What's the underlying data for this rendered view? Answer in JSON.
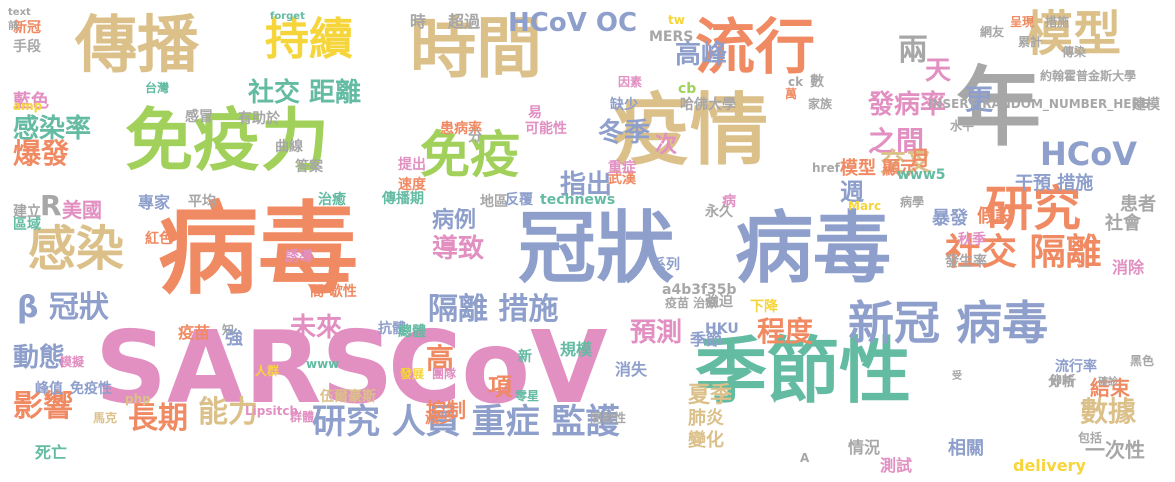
{
  "palette": {
    "orange": "#f08a63",
    "teal": "#63bba2",
    "blue": "#8e9fcc",
    "pink": "#e28fc2",
    "green": "#a1d15a",
    "yellow": "#f6d53a",
    "tan": "#dcc08a",
    "gray": "#a7a7a7"
  },
  "words": [
    {
      "text": "病毒"
    },
    {
      "text": "SARS"
    },
    {
      "text": "CoV"
    },
    {
      "text": "疫情"
    },
    {
      "text": "冠狀"
    },
    {
      "text": "病毒"
    },
    {
      "text": "季節性"
    },
    {
      "text": "免疫力"
    },
    {
      "text": "時間"
    },
    {
      "text": "傳播"
    },
    {
      "text": "年"
    },
    {
      "text": "流行"
    },
    {
      "text": "新冠 病毒"
    },
    {
      "text": "感染"
    },
    {
      "text": "模型"
    },
    {
      "text": "持續"
    },
    {
      "text": "免疫"
    },
    {
      "text": "研究"
    },
    {
      "text": "社交 隔離"
    },
    {
      "text": "HCoV OC"
    },
    {
      "text": "高峰"
    },
    {
      "text": "HCoV"
    },
    {
      "text": "爆發"
    },
    {
      "text": "感染率"
    },
    {
      "text": "社交 距離"
    },
    {
      "text": "隔離 措施"
    },
    {
      "text": "研究 人員 重症 監護"
    },
    {
      "text": "長期"
    },
    {
      "text": "能力"
    },
    {
      "text": "影響"
    },
    {
      "text": "動態"
    },
    {
      "text": "數據"
    },
    {
      "text": "β 冠狀"
    },
    {
      "text": "程度"
    },
    {
      "text": "預測"
    },
    {
      "text": "未來"
    },
    {
      "text": "發病率"
    },
    {
      "text": "之間"
    },
    {
      "text": "冬季"
    },
    {
      "text": "指出"
    },
    {
      "text": "導致"
    },
    {
      "text": "病例"
    },
    {
      "text": "交叉"
    },
    {
      "text": "更"
    },
    {
      "text": "兩"
    },
    {
      "text": "天"
    },
    {
      "text": "美國"
    },
    {
      "text": "R"
    },
    {
      "text": "結束"
    },
    {
      "text": "一次性"
    },
    {
      "text": "夏季"
    },
    {
      "text": "肺炎"
    },
    {
      "text": "變化"
    },
    {
      "text": "控制"
    },
    {
      "text": "項"
    },
    {
      "text": "高"
    },
    {
      "text": "時"
    },
    {
      "text": "超過"
    },
    {
      "text": "模型 顯示"
    },
    {
      "text": "干預 措施"
    },
    {
      "text": "月"
    },
    {
      "text": "週"
    },
    {
      "text": "次"
    },
    {
      "text": "暴發"
    },
    {
      "text": "假設"
    },
    {
      "text": "社會"
    },
    {
      "text": "患者"
    },
    {
      "text": "消除"
    },
    {
      "text": "相關"
    },
    {
      "text": "測試"
    },
    {
      "text": "delivery"
    },
    {
      "text": "藍色"
    },
    {
      "text": "amp"
    },
    {
      "text": "新冠"
    },
    {
      "text": "手段"
    },
    {
      "text": "台灣"
    },
    {
      "text": "患病率"
    },
    {
      "text": "可能性"
    },
    {
      "text": "哈佛大學"
    },
    {
      "text": "約翰霍普金斯大學"
    },
    {
      "text": "傳染"
    },
    {
      "text": "累計"
    },
    {
      "text": "呈現"
    },
    {
      "text": "措施"
    },
    {
      "text": "網友"
    },
    {
      "text": "建模"
    },
    {
      "text": "www5"
    },
    {
      "text": "家族"
    },
    {
      "text": "萬"
    },
    {
      "text": "ck"
    },
    {
      "text": "數"
    },
    {
      "text": "href"
    },
    {
      "text": "MERS"
    },
    {
      "text": "tw"
    },
    {
      "text": "因素"
    },
    {
      "text": "缺少"
    },
    {
      "text": "cb"
    },
    {
      "text": "易"
    },
    {
      "text": "分"
    },
    {
      "text": "感冒"
    },
    {
      "text": "有助於"
    },
    {
      "text": "曲線"
    },
    {
      "text": "答案"
    },
    {
      "text": "提出"
    },
    {
      "text": "速度"
    },
    {
      "text": "專家"
    },
    {
      "text": "平均"
    },
    {
      "text": "治癒"
    },
    {
      "text": "傳播期"
    },
    {
      "text": "地區"
    },
    {
      "text": "反覆"
    },
    {
      "text": "technews"
    },
    {
      "text": "武漢"
    },
    {
      "text": "重症"
    },
    {
      "text": "病"
    },
    {
      "text": "永久"
    },
    {
      "text": "病學"
    },
    {
      "text": "Marc"
    },
    {
      "text": "發生率"
    },
    {
      "text": "秋季"
    },
    {
      "text": "建立"
    },
    {
      "text": "區域"
    },
    {
      "text": "紅色"
    },
    {
      "text": "誘導"
    },
    {
      "text": "間 歇性"
    },
    {
      "text": "新"
    },
    {
      "text": "強迫"
    },
    {
      "text": "系列"
    },
    {
      "text": "a4b3f35b"
    },
    {
      "text": "疫苗 治療"
    },
    {
      "text": "下降"
    },
    {
      "text": "HKU"
    },
    {
      "text": "季節"
    },
    {
      "text": "疫苗"
    },
    {
      "text": "知"
    },
    {
      "text": "強"
    },
    {
      "text": "抗體"
    },
    {
      "text": "總體"
    },
    {
      "text": "規模"
    },
    {
      "text": "消失"
    },
    {
      "text": "流行率"
    },
    {
      "text": "分析"
    },
    {
      "text": "黑色"
    },
    {
      "text": "即時"
    },
    {
      "text": "確診"
    },
    {
      "text": "包括"
    },
    {
      "text": "A"
    },
    {
      "text": "情況"
    },
    {
      "text": "峰值"
    },
    {
      "text": "免疫性"
    },
    {
      "text": "模擬"
    },
    {
      "text": "馬克"
    },
    {
      "text": "php"
    },
    {
      "text": "人群"
    },
    {
      "text": "www"
    },
    {
      "text": "發展"
    },
    {
      "text": "團隊"
    },
    {
      "text": "零星"
    },
    {
      "text": "Lipsitch"
    },
    {
      "text": "伍爾豪斯"
    },
    {
      "text": "減少"
    },
    {
      "text": "群體"
    },
    {
      "text": "間歇性"
    },
    {
      "text": "死亡"
    },
    {
      "text": "受"
    },
    {
      "text": "水平"
    },
    {
      "text": "INSERT_RANDOM_NUMBER_HERE"
    },
    {
      "text": "forget"
    },
    {
      "text": "text"
    },
    {
      "text": "前"
    }
  ]
}
